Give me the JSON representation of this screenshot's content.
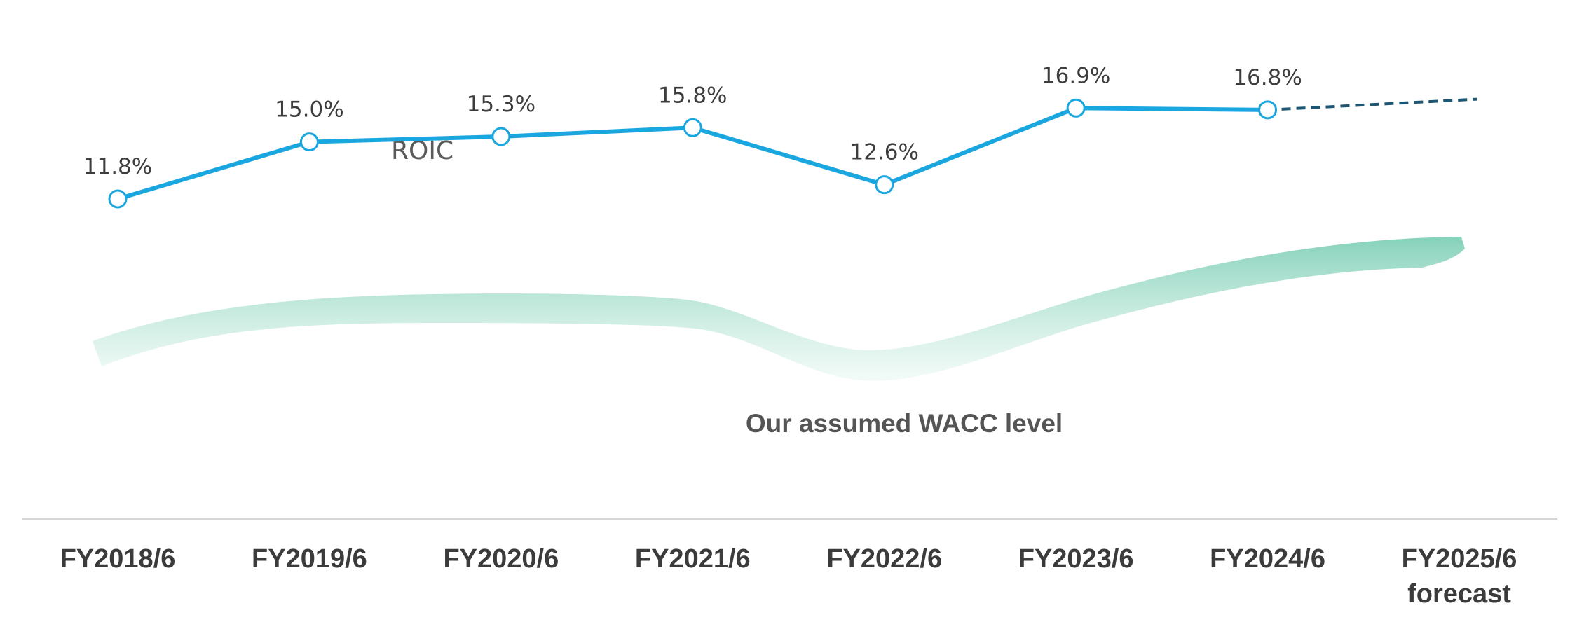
{
  "chart_data": {
    "type": "line",
    "categories": [
      "FY2018/6",
      "FY2019/6",
      "FY2020/6",
      "FY2021/6",
      "FY2022/6",
      "FY2023/6",
      "FY2024/6",
      "FY2025/6 forecast"
    ],
    "category_lines": [
      [
        "FY2018/6"
      ],
      [
        "FY2019/6"
      ],
      [
        "FY2020/6"
      ],
      [
        "FY2021/6"
      ],
      [
        "FY2022/6"
      ],
      [
        "FY2023/6"
      ],
      [
        "FY2024/6"
      ],
      [
        "FY2025/6",
        "forecast"
      ]
    ],
    "series": [
      {
        "name": "ROIC",
        "values": [
          11.8,
          15.0,
          15.3,
          15.8,
          12.6,
          16.9,
          16.8,
          null
        ],
        "labels": [
          "11.8%",
          "15.0%",
          "15.3%",
          "15.8%",
          "12.6%",
          "16.9%",
          "16.8%",
          ""
        ],
        "forecast_value": 17.4,
        "color": "#1aa7df",
        "forecast_color": "#1d5673",
        "marker": "open-circle"
      }
    ],
    "band": {
      "label": "Our assumed WACC level",
      "color": "#8fd3bd",
      "style": "gradient brush stroke, no numeric values shown"
    },
    "title": "",
    "xlabel": "",
    "ylabel": "",
    "yaxis_visible": false,
    "grid": false,
    "legend": "none",
    "baseline_color": "#d6d6d6"
  }
}
